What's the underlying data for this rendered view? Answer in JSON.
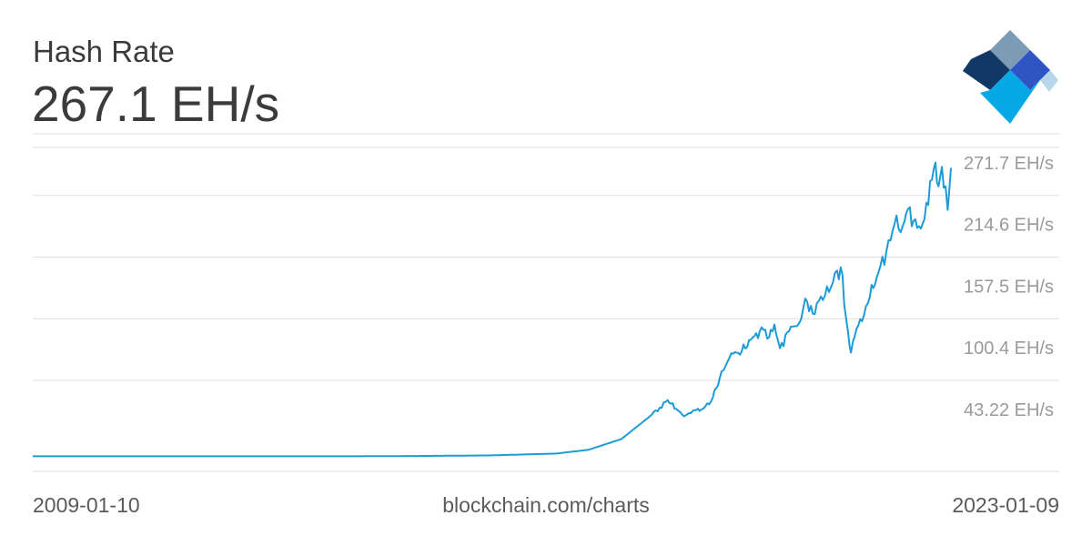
{
  "header": {
    "title": "Hash Rate",
    "current_value": "267.1 EH/s"
  },
  "footer": {
    "start_date": "2009-01-10",
    "source": "blockchain.com/charts",
    "end_date": "2023-01-09"
  },
  "colors": {
    "line": "#1d9bd7",
    "grid": "#dedede",
    "axis_text": "#9a9a9a",
    "title_text": "#3b3b3b",
    "logo_dark": "#123865",
    "logo_gray": "#7c9cb6",
    "logo_blue": "#2f55c5",
    "logo_cyan": "#06a8e6",
    "logo_light": "#b7d6ea"
  },
  "logo": {
    "name": "blockchain-logo"
  },
  "chart_data": {
    "type": "line",
    "title": "Hash Rate",
    "xlabel": "",
    "ylabel": "",
    "x_range": [
      "2009-01-10",
      "2023-01-09"
    ],
    "ylim": [
      -14,
      286
    ],
    "grid": true,
    "legend": "none",
    "y_ticks": [
      {
        "value": 43.22,
        "label": "43.22 EH/s"
      },
      {
        "value": 100.4,
        "label": "100.4 EH/s"
      },
      {
        "value": 157.5,
        "label": "157.5 EH/s"
      },
      {
        "value": 214.6,
        "label": "214.6 EH/s"
      },
      {
        "value": 271.7,
        "label": "271.7 EH/s"
      }
    ],
    "series": [
      {
        "values": [
          [
            "2009-01-10",
            0
          ],
          [
            "2012-01-01",
            0
          ],
          [
            "2014-01-01",
            0.01
          ],
          [
            "2015-01-01",
            0.3
          ],
          [
            "2016-01-01",
            0.8
          ],
          [
            "2017-01-01",
            2.5
          ],
          [
            "2017-07-01",
            6
          ],
          [
            "2018-01-01",
            16
          ],
          [
            "2018-04-01",
            28
          ],
          [
            "2018-06-01",
            36
          ],
          [
            "2018-08-01",
            45
          ],
          [
            "2018-09-15",
            52
          ],
          [
            "2018-11-01",
            44
          ],
          [
            "2018-12-15",
            37
          ],
          [
            "2019-02-01",
            42
          ],
          [
            "2019-04-01",
            44
          ],
          [
            "2019-05-15",
            51
          ],
          [
            "2019-07-01",
            72
          ],
          [
            "2019-08-15",
            88
          ],
          [
            "2019-09-15",
            95
          ],
          [
            "2019-11-01",
            97
          ],
          [
            "2020-01-01",
            110
          ],
          [
            "2020-03-01",
            117
          ],
          [
            "2020-04-01",
            110
          ],
          [
            "2020-05-01",
            122
          ],
          [
            "2020-06-01",
            100
          ],
          [
            "2020-08-01",
            120
          ],
          [
            "2020-09-15",
            123
          ],
          [
            "2020-10-20",
            146
          ],
          [
            "2020-12-01",
            132
          ],
          [
            "2021-01-15",
            148
          ],
          [
            "2021-03-01",
            152
          ],
          [
            "2021-04-15",
            172
          ],
          [
            "2021-05-15",
            168
          ],
          [
            "2021-05-25",
            140
          ],
          [
            "2021-06-15",
            115
          ],
          [
            "2021-07-01",
            96
          ],
          [
            "2021-08-01",
            118
          ],
          [
            "2021-09-01",
            125
          ],
          [
            "2021-10-15",
            148
          ],
          [
            "2021-12-01",
            170
          ],
          [
            "2022-01-15",
            190
          ],
          [
            "2022-03-01",
            215
          ],
          [
            "2022-04-15",
            213
          ],
          [
            "2022-05-15",
            229
          ],
          [
            "2022-06-15",
            218
          ],
          [
            "2022-07-15",
            213
          ],
          [
            "2022-08-15",
            220
          ],
          [
            "2022-09-15",
            255
          ],
          [
            "2022-10-15",
            272
          ],
          [
            "2022-11-01",
            250
          ],
          [
            "2022-11-20",
            268
          ],
          [
            "2022-12-10",
            250
          ],
          [
            "2022-12-22",
            228
          ],
          [
            "2023-01-09",
            267.1
          ]
        ]
      }
    ]
  }
}
